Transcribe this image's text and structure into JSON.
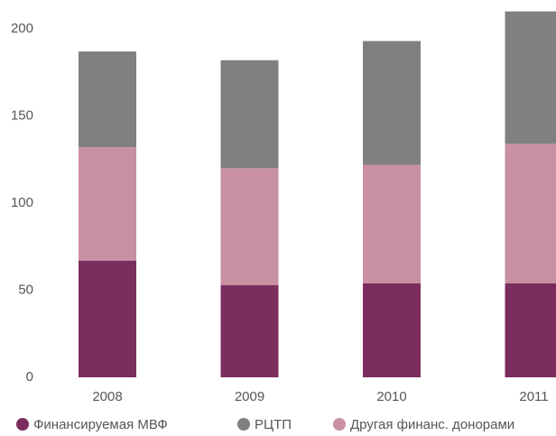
{
  "chart_data": {
    "type": "stacked_bar",
    "categories": [
      "2008",
      "2009",
      "2010",
      "2011"
    ],
    "series": [
      {
        "name": "Финансируемая МВФ",
        "color": "#7b2d5e",
        "values": [
          67,
          53,
          54,
          54
        ]
      },
      {
        "name": "Другая финанс. донорами",
        "color": "#c990a2",
        "values": [
          65,
          67,
          68,
          80
        ]
      },
      {
        "name": "РЦТП",
        "color": "#808083",
        "values": [
          55,
          62,
          71,
          76
        ]
      }
    ],
    "legend_order": [
      0,
      2,
      1
    ],
    "ylim": [
      0,
      215
    ],
    "yticks": [
      0,
      50,
      100,
      150,
      200
    ],
    "grid": false
  }
}
